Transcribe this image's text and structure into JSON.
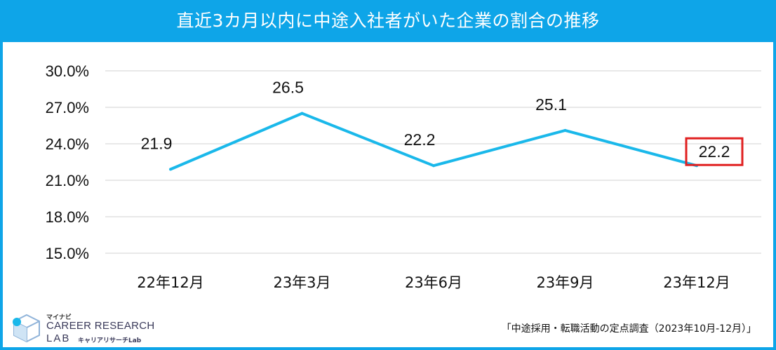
{
  "header": {
    "title": "直近3カ月以内に中途入社者がいた企業の割合の推移"
  },
  "chart_data": {
    "type": "line",
    "title": "直近3カ月以内に中途入社者がいた企業の割合の推移",
    "categories": [
      "22年12月",
      "23年3月",
      "23年6月",
      "23年9月",
      "23年12月"
    ],
    "series": [
      {
        "values": [
          21.9,
          26.5,
          22.2,
          25.1,
          22.2
        ],
        "labels": [
          "21.9",
          "26.5",
          "22.2",
          "25.1",
          "22.2"
        ],
        "color": "#1ab8ea"
      }
    ],
    "ylim": [
      15.0,
      30.0
    ],
    "yticks": [
      30.0,
      27.0,
      24.0,
      21.0,
      18.0,
      15.0
    ],
    "ytick_labels": [
      "30.0%",
      "27.0%",
      "24.0%",
      "21.0%",
      "18.0%",
      "15.0%"
    ],
    "grid": true,
    "highlight_color": "#e02020"
  },
  "footer": {
    "source": "「中途採用・転職活動の定点調査（2023年10月-12月）」",
    "logo": {
      "small": "マイナビ",
      "main": "CAREER RESEARCH",
      "lab": "LAB",
      "kana": "キャリアリサーチLab"
    }
  },
  "colors": {
    "brand": "#0ea5e8",
    "line": "#1ab8ea",
    "grid": "#d9d9d9",
    "highlight": "#e02020"
  }
}
